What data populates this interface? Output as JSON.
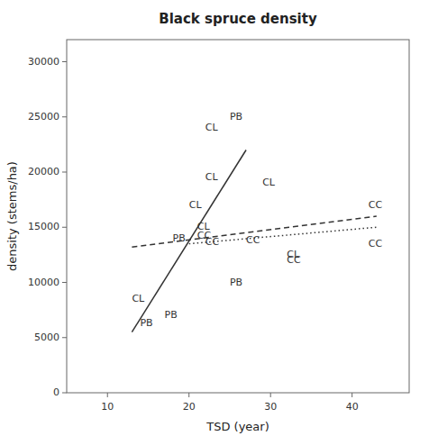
{
  "chart_data": {
    "type": "scatter",
    "title": "Black spruce density",
    "x_label": "TSD (year)",
    "y_label": "density (stems/ha)",
    "xlim": [
      5,
      47
    ],
    "ylim": [
      0,
      32000
    ],
    "xticks": [
      10,
      20,
      30,
      40
    ],
    "yticks": [
      0,
      5000,
      10000,
      15000,
      20000,
      25000,
      30000
    ],
    "grid": false,
    "series": [
      {
        "name": "CL",
        "type": "scatter",
        "marker": "text",
        "color": "#333333",
        "x": [
          13,
          20,
          21,
          22,
          22,
          29,
          32
        ],
        "values": [
          8500,
          17000,
          15000,
          19500,
          24000,
          19000,
          12500
        ]
      },
      {
        "name": "PB",
        "type": "scatter",
        "marker": "text",
        "color": "#333333",
        "x": [
          14,
          17,
          18,
          25,
          25
        ],
        "values": [
          6300,
          7000,
          14000,
          25000,
          10000
        ]
      },
      {
        "name": "CC",
        "type": "scatter",
        "marker": "text",
        "color": "#333333",
        "x": [
          21,
          22,
          27,
          32,
          42,
          42
        ],
        "values": [
          14200,
          13600,
          13800,
          12000,
          17000,
          13500
        ]
      },
      {
        "type": "line",
        "line_style": "solid",
        "color": "#333333",
        "x": [
          13,
          27
        ],
        "values": [
          5500,
          22000
        ]
      },
      {
        "type": "line",
        "line_style": "dashed",
        "color": "#333333",
        "x": [
          13,
          43
        ],
        "values": [
          13200,
          16000
        ]
      },
      {
        "type": "line",
        "line_style": "dotted",
        "color": "#333333",
        "x": [
          20,
          43
        ],
        "values": [
          13500,
          15000
        ]
      }
    ]
  }
}
